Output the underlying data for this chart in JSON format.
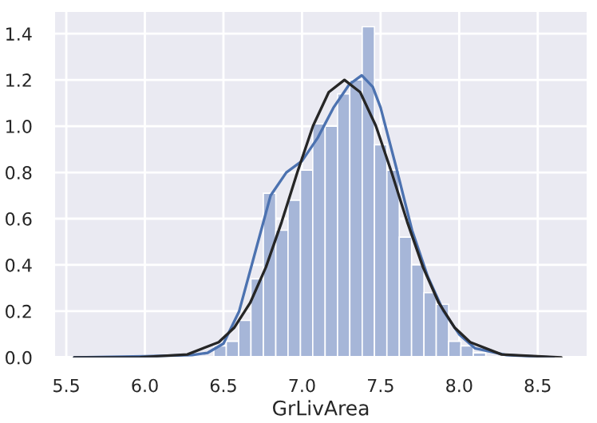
{
  "chart_data": {
    "type": "histogram",
    "xlabel": "GrLivArea",
    "xlim": [
      5.42,
      8.82
    ],
    "ylim": [
      0,
      1.5
    ],
    "xticks": [
      {
        "value": 5.5,
        "label": "5.5"
      },
      {
        "value": 6.0,
        "label": "6.0"
      },
      {
        "value": 6.5,
        "label": "6.5"
      },
      {
        "value": 7.0,
        "label": "7.0"
      },
      {
        "value": 7.5,
        "label": "7.5"
      },
      {
        "value": 8.0,
        "label": "8.0"
      },
      {
        "value": 8.5,
        "label": "8.5"
      }
    ],
    "yticks": [
      {
        "value": 0,
        "label": "0.0"
      },
      {
        "value": 0.2,
        "label": "0.2"
      },
      {
        "value": 0.4,
        "label": "0.4"
      },
      {
        "value": 0.6,
        "label": "0.6"
      },
      {
        "value": 0.8,
        "label": "0.8"
      },
      {
        "value": 1.0,
        "label": "1.0"
      },
      {
        "value": 1.2,
        "label": "1.2"
      },
      {
        "value": 1.4,
        "label": "1.4"
      }
    ],
    "grid": true,
    "legend": false,
    "series": [
      {
        "color": "#a6b6d8",
        "bins": [
          6.283,
          6.361,
          6.439,
          6.518,
          6.597,
          6.675,
          6.754,
          6.833,
          6.911,
          6.99,
          7.068,
          7.147,
          7.226,
          7.304,
          7.383,
          7.461,
          7.54,
          7.619,
          7.697,
          7.776,
          7.854,
          7.933,
          8.011,
          8.09,
          8.169
        ],
        "values": [
          null,
          null,
          0.05,
          0.07,
          0.16,
          0.34,
          0.71,
          0.55,
          0.68,
          0.81,
          1.01,
          1.0,
          1.14,
          1.2,
          1.43,
          0.92,
          0.81,
          0.52,
          0.4,
          0.28,
          0.23,
          0.07,
          0.05,
          0.02
        ]
      },
      {
        "type": "line",
        "color": "#4c72b0",
        "x": [
          5.55,
          6.0,
          6.3,
          6.4,
          6.5,
          6.6,
          6.7,
          6.8,
          6.9,
          7.0,
          7.1,
          7.2,
          7.3,
          7.38,
          7.45,
          7.5,
          7.6,
          7.7,
          7.8,
          7.9,
          8.0,
          8.1,
          8.3,
          8.6
        ],
        "values": [
          0,
          0.005,
          0.01,
          0.02,
          0.06,
          0.2,
          0.45,
          0.7,
          0.8,
          0.85,
          0.95,
          1.08,
          1.18,
          1.22,
          1.17,
          1.08,
          0.82,
          0.55,
          0.35,
          0.2,
          0.1,
          0.04,
          0.01,
          0
        ]
      },
      {
        "type": "line",
        "color": "#262626",
        "x": [
          5.55,
          5.97,
          6.27,
          6.47,
          6.57,
          6.67,
          6.77,
          6.87,
          6.97,
          7.07,
          7.17,
          7.27,
          7.37,
          7.47,
          7.57,
          7.67,
          7.77,
          7.87,
          7.97,
          8.07,
          8.27,
          8.65
        ],
        "values": [
          0,
          0.001,
          0.013,
          0.066,
          0.13,
          0.236,
          0.39,
          0.585,
          0.8,
          1.001,
          1.147,
          1.2,
          1.147,
          1.001,
          0.8,
          0.585,
          0.39,
          0.236,
          0.13,
          0.066,
          0.013,
          0
        ]
      }
    ]
  }
}
